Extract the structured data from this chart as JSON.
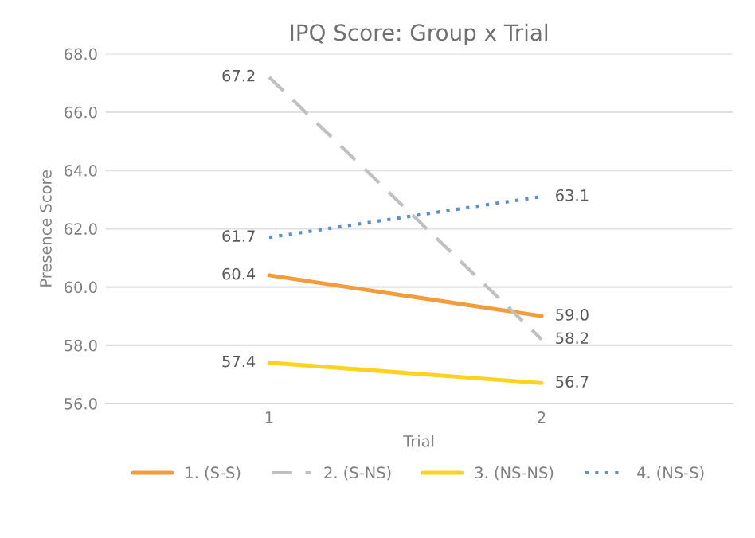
{
  "chart_data": {
    "type": "line",
    "title": "IPQ Score: Group x Trial",
    "xlabel": "Trial",
    "ylabel": "Presence Score",
    "x": [
      1,
      2
    ],
    "xlim": [
      0.4,
      2.7
    ],
    "xticks": [
      1,
      2
    ],
    "ylim": [
      56,
      68
    ],
    "yticks": [
      {
        "value": 56,
        "label": "56.0"
      },
      {
        "value": 58,
        "label": "58.0"
      },
      {
        "value": 60,
        "label": "60.0"
      },
      {
        "value": 62,
        "label": "62.0"
      },
      {
        "value": 64,
        "label": "64.0"
      },
      {
        "value": 66,
        "label": "66.0"
      },
      {
        "value": 68,
        "label": "68.0"
      }
    ],
    "grid": "y",
    "legend": "bottom",
    "marker": "none",
    "series": [
      {
        "name": "1. (S-S)",
        "color": "#f39c3c",
        "values": [
          60.4,
          59.0
        ],
        "line_style": "solid",
        "value_labels": [
          "60.4",
          "59.0"
        ]
      },
      {
        "name": "2. (S-NS)",
        "color": "#c0c0c0",
        "values": [
          67.2,
          58.2
        ],
        "line_style": "dashed",
        "value_labels": [
          "67.2",
          "58.2"
        ]
      },
      {
        "name": "3. (NS-NS)",
        "color": "#ffd21f",
        "values": [
          57.4,
          56.7
        ],
        "line_style": "solid",
        "value_labels": [
          "57.4",
          "56.7"
        ]
      },
      {
        "name": "4. (NS-S)",
        "color": "#5b8fd0",
        "values": [
          61.7,
          63.1
        ],
        "line_style": "dotted",
        "value_labels": [
          "61.7",
          "63.1"
        ]
      }
    ]
  }
}
